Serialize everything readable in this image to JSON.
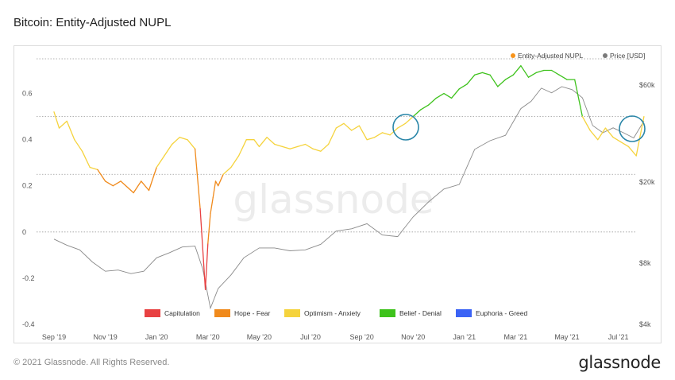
{
  "title": "Bitcoin: Entity-Adjusted NUPL",
  "footer": {
    "copyright": "© 2021 Glassnode. All Rights Reserved.",
    "logo": "glassnode"
  },
  "watermark": "glassnode",
  "chart_data": {
    "type": "line",
    "x_ticks": [
      "Sep '19",
      "Nov '19",
      "Jan '20",
      "Mar '20",
      "May '20",
      "Jul '20",
      "Sep '20",
      "Nov '20",
      "Jan '21",
      "Mar '21",
      "May '21",
      "Jul '21"
    ],
    "y_left_ticks": [
      "0.6",
      "0.4",
      "0.2",
      "0",
      "-0.2",
      "-0.4"
    ],
    "y_left_range": [
      -0.4,
      0.75
    ],
    "y_right_ticks": [
      "$60k",
      "$20k",
      "$8k",
      "$4k"
    ],
    "y_right_scale": "log",
    "legend_top": [
      {
        "label": "Entity-Adjusted NUPL",
        "color": "#f7931a"
      },
      {
        "label": "Price [USD]",
        "color": "#7a7a7a"
      }
    ],
    "zones_legend": [
      {
        "label": "Capitulation",
        "color": "#e84142"
      },
      {
        "label": "Hope - Fear",
        "color": "#f08a1c"
      },
      {
        "label": "Optimism - Anxiety",
        "color": "#f5d33d"
      },
      {
        "label": "Belief - Denial",
        "color": "#3ec21c"
      },
      {
        "label": "Euphoria - Greed",
        "color": "#3b63f5"
      }
    ],
    "zone_thresholds": [
      0,
      0.25,
      0.5,
      0.75
    ],
    "series": [
      {
        "name": "Entity-Adjusted NUPL",
        "x_index": [
          0,
          0.1,
          0.25,
          0.4,
          0.55,
          0.7,
          0.85,
          1.0,
          1.15,
          1.3,
          1.45,
          1.55,
          1.7,
          1.85,
          2.0,
          2.15,
          2.3,
          2.45,
          2.6,
          2.75,
          2.85,
          2.95,
          3.0,
          3.05,
          3.1,
          3.15,
          3.2,
          3.3,
          3.45,
          3.6,
          3.75,
          3.9,
          4.0,
          4.15,
          4.3,
          4.45,
          4.6,
          4.75,
          4.9,
          5.05,
          5.2,
          5.35,
          5.5,
          5.65,
          5.8,
          5.95,
          6.1,
          6.25,
          6.4,
          6.55,
          6.7,
          6.85,
          7.0,
          7.15,
          7.3,
          7.45,
          7.6,
          7.75,
          7.9,
          8.05,
          8.2,
          8.35,
          8.5,
          8.65,
          8.8,
          8.95,
          9.1,
          9.25,
          9.4,
          9.55,
          9.7,
          9.85,
          10.0,
          10.15,
          10.3,
          10.45,
          10.6,
          10.75,
          10.9,
          11.05,
          11.2,
          11.35,
          11.5
        ],
        "values": [
          0.52,
          0.45,
          0.48,
          0.4,
          0.35,
          0.28,
          0.27,
          0.22,
          0.2,
          0.22,
          0.19,
          0.17,
          0.22,
          0.18,
          0.28,
          0.33,
          0.38,
          0.41,
          0.4,
          0.36,
          0.1,
          -0.25,
          -0.05,
          0.08,
          0.15,
          0.22,
          0.2,
          0.25,
          0.28,
          0.33,
          0.4,
          0.4,
          0.37,
          0.41,
          0.38,
          0.37,
          0.36,
          0.37,
          0.38,
          0.36,
          0.35,
          0.38,
          0.45,
          0.47,
          0.44,
          0.46,
          0.4,
          0.41,
          0.43,
          0.42,
          0.45,
          0.47,
          0.5,
          0.53,
          0.55,
          0.58,
          0.6,
          0.58,
          0.62,
          0.64,
          0.68,
          0.69,
          0.68,
          0.63,
          0.66,
          0.68,
          0.72,
          0.67,
          0.69,
          0.7,
          0.7,
          0.68,
          0.66,
          0.66,
          0.5,
          0.44,
          0.4,
          0.45,
          0.41,
          0.39,
          0.37,
          0.33,
          0.5
        ]
      },
      {
        "name": "Price [USD]",
        "x_index": [
          0,
          0.25,
          0.5,
          0.75,
          1.0,
          1.25,
          1.5,
          1.75,
          2.0,
          2.25,
          2.5,
          2.75,
          2.9,
          3.05,
          3.2,
          3.45,
          3.7,
          4.0,
          4.3,
          4.6,
          4.9,
          5.2,
          5.5,
          5.8,
          6.1,
          6.4,
          6.7,
          7.0,
          7.3,
          7.6,
          7.9,
          8.2,
          8.5,
          8.8,
          9.1,
          9.3,
          9.5,
          9.7,
          9.9,
          10.1,
          10.3,
          10.5,
          10.7,
          10.9,
          11.1,
          11.3,
          11.5
        ],
        "values": [
          10500,
          9800,
          9300,
          8100,
          7300,
          7400,
          7100,
          7300,
          8500,
          9000,
          9600,
          9700,
          7500,
          4800,
          6000,
          7000,
          8500,
          9500,
          9500,
          9200,
          9300,
          9900,
          11500,
          11800,
          12500,
          11000,
          10800,
          13500,
          16000,
          18500,
          19500,
          29000,
          32000,
          34000,
          46000,
          50000,
          58000,
          55000,
          59000,
          57000,
          52000,
          38000,
          35000,
          37000,
          35000,
          33000,
          40000
        ]
      }
    ]
  }
}
